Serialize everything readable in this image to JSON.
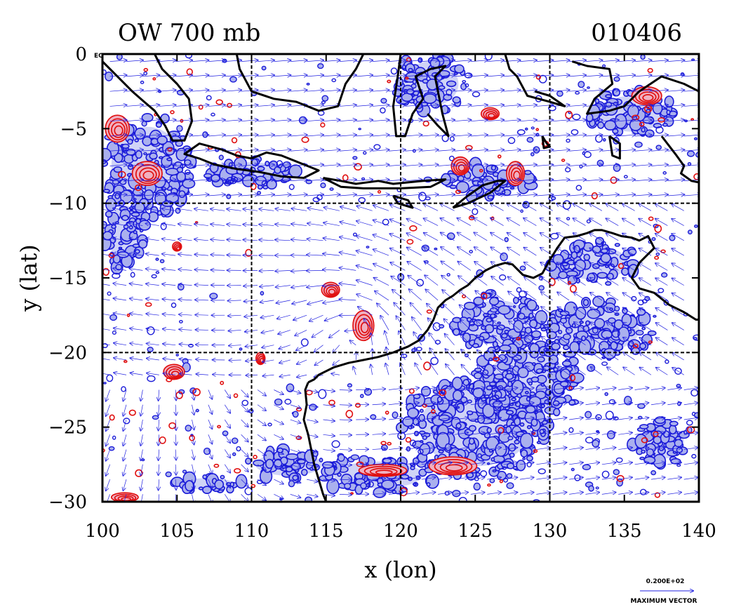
{
  "chart_data": {
    "type": "contour",
    "title_left": "OW 700 mb",
    "title_right": "010406",
    "xlabel": "x (lon)",
    "ylabel": "y (lat)",
    "xlim": [
      100,
      140
    ],
    "ylim": [
      -30,
      0
    ],
    "x_ticks": [
      "100",
      "105",
      "110",
      "115",
      "120",
      "125",
      "130",
      "135",
      "140"
    ],
    "x_tick_values": [
      100,
      105,
      110,
      115,
      120,
      125,
      130,
      135,
      140
    ],
    "y_ticks": [
      "0",
      "−5",
      "−10",
      "−15",
      "−20",
      "−25",
      "−30"
    ],
    "y_tick_values": [
      0,
      -5,
      -10,
      -15,
      -20,
      -25,
      -30
    ],
    "eq_label": "EQ",
    "grid": true,
    "grid_lines_x": [
      110,
      120,
      130
    ],
    "grid_lines_y": [
      -10,
      -20
    ],
    "vector_key_value": "0.200E+02",
    "vector_key_label": "MAXIMUM VECTOR",
    "colors": {
      "vector": "#2020e0",
      "positive_contour": "#e01010",
      "positive_fill": "#f0b0c0",
      "negative_contour": "#1a1ad8",
      "negative_fill": "#aab0ee",
      "coastline": "#000000"
    },
    "positive_centers": [
      {
        "lon": 117.5,
        "lat": -18.2,
        "rx": 0.7,
        "ry": 1.0
      },
      {
        "lon": 115.3,
        "lat": -15.8,
        "rx": 0.6,
        "ry": 0.5
      },
      {
        "lon": 104.8,
        "lat": -21.3,
        "rx": 0.7,
        "ry": 0.5
      },
      {
        "lon": 103.0,
        "lat": -8.0,
        "rx": 1.0,
        "ry": 0.8
      },
      {
        "lon": 101.0,
        "lat": -5.0,
        "rx": 0.8,
        "ry": 0.9
      },
      {
        "lon": 124.0,
        "lat": -7.5,
        "rx": 0.6,
        "ry": 0.6
      },
      {
        "lon": 127.7,
        "lat": -8.0,
        "rx": 0.6,
        "ry": 0.8
      },
      {
        "lon": 101.5,
        "lat": -29.7,
        "rx": 0.9,
        "ry": 0.3
      },
      {
        "lon": 118.8,
        "lat": -27.9,
        "rx": 1.6,
        "ry": 0.4
      },
      {
        "lon": 123.5,
        "lat": -27.6,
        "rx": 1.6,
        "ry": 0.6
      },
      {
        "lon": 110.6,
        "lat": -20.4,
        "rx": 0.3,
        "ry": 0.4
      },
      {
        "lon": 105.0,
        "lat": -12.9,
        "rx": 0.3,
        "ry": 0.3
      },
      {
        "lon": 136.5,
        "lat": -2.8,
        "rx": 1.0,
        "ry": 0.6
      },
      {
        "lon": 126.0,
        "lat": -4.0,
        "rx": 0.6,
        "ry": 0.4
      }
    ],
    "negative_regions": [
      {
        "lon": 103.0,
        "lat": -7.5,
        "rx": 3.2,
        "ry": 3.5
      },
      {
        "lon": 101.5,
        "lat": -12.0,
        "rx": 1.5,
        "ry": 2.5
      },
      {
        "lon": 125.0,
        "lat": -25.0,
        "rx": 5.0,
        "ry": 3.5
      },
      {
        "lon": 128.5,
        "lat": -22.0,
        "rx": 3.5,
        "ry": 3.0
      },
      {
        "lon": 118.5,
        "lat": -28.2,
        "rx": 4.0,
        "ry": 1.2
      },
      {
        "lon": 112.5,
        "lat": -27.5,
        "rx": 3.0,
        "ry": 1.0
      },
      {
        "lon": 133.0,
        "lat": -18.5,
        "rx": 4.0,
        "ry": 2.0
      },
      {
        "lon": 122.0,
        "lat": -2.0,
        "rx": 2.5,
        "ry": 2.0
      },
      {
        "lon": 135.5,
        "lat": -4.0,
        "rx": 3.0,
        "ry": 1.6
      },
      {
        "lon": 110.0,
        "lat": -8.0,
        "rx": 3.0,
        "ry": 1.0
      },
      {
        "lon": 126.0,
        "lat": -8.5,
        "rx": 3.0,
        "ry": 1.2
      },
      {
        "lon": 133.0,
        "lat": -14.0,
        "rx": 3.0,
        "ry": 1.5
      },
      {
        "lon": 126.5,
        "lat": -18.0,
        "rx": 3.0,
        "ry": 2.0
      },
      {
        "lon": 107.0,
        "lat": -28.8,
        "rx": 2.5,
        "ry": 0.5
      },
      {
        "lon": 137.5,
        "lat": -26.0,
        "rx": 2.0,
        "ry": 1.5
      }
    ],
    "coastlines": [
      [
        [
          113.8,
          -22.0
        ],
        [
          114.2,
          -21.8
        ],
        [
          114.5,
          -21.5
        ],
        [
          115.5,
          -21.0
        ],
        [
          116.5,
          -20.7
        ],
        [
          117.5,
          -20.5
        ],
        [
          118.5,
          -20.3
        ],
        [
          119.5,
          -20.0
        ],
        [
          120.5,
          -19.6
        ],
        [
          121.2,
          -19.2
        ],
        [
          121.8,
          -18.5
        ],
        [
          122.2,
          -17.8
        ],
        [
          122.5,
          -17.0
        ],
        [
          123.0,
          -16.5
        ],
        [
          123.5,
          -16.2
        ],
        [
          124.0,
          -15.8
        ],
        [
          124.5,
          -15.5
        ],
        [
          125.0,
          -15.0
        ],
        [
          125.7,
          -14.5
        ],
        [
          126.3,
          -14.2
        ],
        [
          127.0,
          -14.0
        ],
        [
          127.5,
          -14.1
        ],
        [
          128.2,
          -14.8
        ],
        [
          128.9,
          -15.0
        ],
        [
          129.5,
          -14.7
        ],
        [
          130.0,
          -13.8
        ],
        [
          130.5,
          -13.0
        ],
        [
          131.0,
          -12.3
        ],
        [
          131.8,
          -12.2
        ],
        [
          132.5,
          -12.0
        ],
        [
          133.0,
          -11.8
        ],
        [
          133.5,
          -11.8
        ],
        [
          134.2,
          -12.0
        ],
        [
          134.8,
          -12.2
        ],
        [
          135.5,
          -12.3
        ],
        [
          136.0,
          -12.5
        ],
        [
          136.6,
          -12.2
        ],
        [
          137.0,
          -13.0
        ],
        [
          136.5,
          -13.5
        ],
        [
          136.0,
          -14.0
        ],
        [
          135.5,
          -15.0
        ],
        [
          136.0,
          -15.7
        ],
        [
          137.0,
          -16.0
        ],
        [
          138.0,
          -16.8
        ],
        [
          139.0,
          -17.3
        ],
        [
          139.8,
          -17.8
        ],
        [
          140.0,
          -17.8
        ]
      ],
      [
        [
          113.8,
          -22.0
        ],
        [
          113.6,
          -22.5
        ],
        [
          113.7,
          -23.5
        ],
        [
          113.5,
          -24.5
        ],
        [
          113.8,
          -25.5
        ],
        [
          114.0,
          -26.5
        ],
        [
          114.2,
          -27.5
        ],
        [
          114.5,
          -28.5
        ],
        [
          114.8,
          -29.5
        ],
        [
          115.0,
          -30.0
        ]
      ],
      [
        [
          110.0,
          -7.0
        ],
        [
          111.0,
          -6.6
        ],
        [
          112.0,
          -6.8
        ],
        [
          113.0,
          -7.2
        ],
        [
          114.5,
          -7.8
        ],
        [
          113.5,
          -8.3
        ],
        [
          112.0,
          -8.2
        ],
        [
          110.5,
          -7.9
        ],
        [
          109.0,
          -7.7
        ],
        [
          107.5,
          -7.4
        ],
        [
          106.5,
          -7.0
        ],
        [
          105.5,
          -6.7
        ],
        [
          106.5,
          -6.0
        ],
        [
          108.0,
          -6.4
        ],
        [
          109.0,
          -6.8
        ],
        [
          110.0,
          -7.0
        ]
      ],
      [
        [
          100.0,
          -0.5
        ],
        [
          101.0,
          -1.5
        ],
        [
          102.0,
          -2.5
        ],
        [
          102.8,
          -3.2
        ],
        [
          103.5,
          -3.8
        ],
        [
          104.2,
          -4.8
        ],
        [
          104.7,
          -5.8
        ],
        [
          105.5,
          -5.8
        ],
        [
          106.0,
          -4.5
        ],
        [
          105.8,
          -3.0
        ],
        [
          105.0,
          -2.0
        ],
        [
          104.0,
          -1.0
        ],
        [
          103.5,
          0.0
        ]
      ],
      [
        [
          109.0,
          0.0
        ],
        [
          109.2,
          -1.0
        ],
        [
          110.0,
          -2.5
        ],
        [
          111.5,
          -3.0
        ],
        [
          113.0,
          -3.2
        ],
        [
          114.5,
          -3.8
        ],
        [
          115.8,
          -3.5
        ],
        [
          116.3,
          -2.0
        ],
        [
          117.0,
          -1.0
        ],
        [
          117.5,
          0.0
        ]
      ],
      [
        [
          120.0,
          0.0
        ],
        [
          119.8,
          -1.5
        ],
        [
          119.5,
          -3.5
        ],
        [
          119.7,
          -5.5
        ],
        [
          120.3,
          -5.5
        ],
        [
          120.8,
          -4.0
        ],
        [
          121.5,
          -3.0
        ],
        [
          121.0,
          -1.5
        ],
        [
          122.0,
          -1.0
        ],
        [
          123.0,
          -0.8
        ],
        [
          122.3,
          -1.5
        ],
        [
          122.8,
          -4.0
        ],
        [
          123.2,
          -5.5
        ],
        [
          122.5,
          -4.8
        ],
        [
          121.8,
          -4.0
        ]
      ],
      [
        [
          114.8,
          -8.3
        ],
        [
          116.0,
          -8.5
        ],
        [
          117.0,
          -8.7
        ],
        [
          118.5,
          -8.5
        ],
        [
          119.5,
          -8.7
        ],
        [
          120.5,
          -8.6
        ],
        [
          121.5,
          -8.5
        ],
        [
          123.0,
          -8.4
        ],
        [
          122.0,
          -8.9
        ],
        [
          120.0,
          -9.0
        ],
        [
          117.5,
          -9.0
        ],
        [
          116.0,
          -8.9
        ],
        [
          114.8,
          -8.3
        ]
      ],
      [
        [
          119.5,
          -9.5
        ],
        [
          120.5,
          -9.8
        ],
        [
          120.8,
          -10.3
        ],
        [
          119.8,
          -10.0
        ],
        [
          119.5,
          -9.5
        ]
      ],
      [
        [
          123.5,
          -10.3
        ],
        [
          124.5,
          -9.5
        ],
        [
          125.5,
          -8.8
        ],
        [
          126.5,
          -8.5
        ],
        [
          127.0,
          -8.5
        ],
        [
          126.0,
          -9.3
        ],
        [
          124.5,
          -10.0
        ],
        [
          123.5,
          -10.3
        ]
      ],
      [
        [
          127.0,
          0.0
        ],
        [
          127.3,
          -1.0
        ],
        [
          127.8,
          -1.5
        ],
        [
          128.5,
          -2.8
        ],
        [
          130.0,
          -3.2
        ],
        [
          131.0,
          -3.5
        ],
        [
          130.0,
          -2.8
        ],
        [
          129.0,
          -2.5
        ]
      ],
      [
        [
          131.5,
          -0.5
        ],
        [
          132.5,
          -0.8
        ],
        [
          134.0,
          -1.0
        ],
        [
          134.2,
          -2.0
        ],
        [
          133.0,
          -3.0
        ],
        [
          132.5,
          -4.0
        ],
        [
          134.0,
          -3.8
        ],
        [
          135.0,
          -3.5
        ],
        [
          136.0,
          -2.5
        ],
        [
          137.5,
          -1.5
        ],
        [
          139.0,
          -2.0
        ],
        [
          140.0,
          -2.5
        ]
      ],
      [
        [
          137.5,
          -5.5
        ],
        [
          138.5,
          -6.8
        ],
        [
          139.0,
          -7.5
        ],
        [
          138.8,
          -8.0
        ],
        [
          139.5,
          -8.5
        ],
        [
          140.0,
          -8.6
        ]
      ],
      [
        [
          134.0,
          -5.5
        ],
        [
          134.7,
          -6.0
        ],
        [
          134.7,
          -7.0
        ],
        [
          134.2,
          -6.8
        ],
        [
          134.0,
          -5.5
        ]
      ],
      [
        [
          129.5,
          -5.5
        ],
        [
          129.8,
          -6.0
        ],
        [
          130.0,
          -6.2
        ],
        [
          129.6,
          -6.3
        ],
        [
          129.5,
          -5.5
        ]
      ]
    ]
  }
}
